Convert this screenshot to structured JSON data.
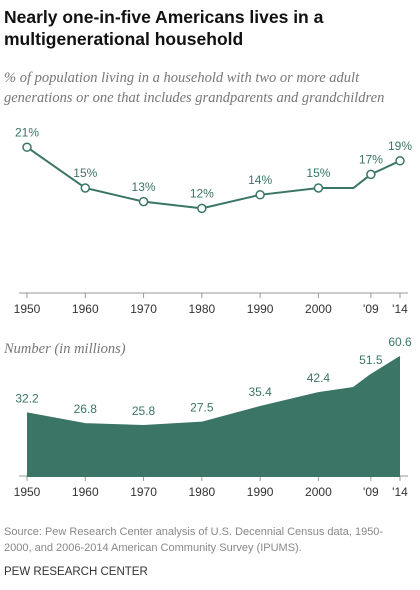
{
  "chart_data": [
    {
      "type": "line",
      "title": "Nearly one-in-five Americans lives in a multigenerational household",
      "subtitle": "% of population living in a household with two or more adult generations or one that includes grandparents and grandchildren",
      "x": [
        1950,
        1960,
        1970,
        1980,
        1990,
        2000,
        2006,
        2009,
        2014
      ],
      "values": [
        21,
        15,
        13,
        12,
        14,
        15,
        15,
        17,
        19
      ],
      "value_labels": [
        "21%",
        "15%",
        "13%",
        "12%",
        "14%",
        "15%",
        null,
        "17%",
        "19%"
      ],
      "color": "#3a7565",
      "xlim": [
        1950,
        2014
      ],
      "xticks": [
        1950,
        1960,
        1970,
        1980,
        1990,
        2000,
        {
          "value": 2009,
          "label": "'09"
        },
        {
          "value": 2014,
          "label": "'14"
        }
      ],
      "ylim": [
        0,
        25
      ]
    },
    {
      "type": "area",
      "subtitle": "Number (in millions)",
      "x": [
        1950,
        1960,
        1970,
        1980,
        1990,
        2000,
        2006,
        2009,
        2014
      ],
      "values": [
        32.2,
        26.8,
        25.8,
        27.5,
        35.4,
        42.4,
        45,
        51.5,
        60.6
      ],
      "value_labels": [
        "32.2",
        "26.8",
        "25.8",
        "27.5",
        "35.4",
        "42.4",
        null,
        "51.5",
        "60.6"
      ],
      "color": "#3a7565",
      "xlim": [
        1950,
        2014
      ],
      "xticks": [
        1950,
        1960,
        1970,
        1980,
        1990,
        2000,
        {
          "value": 2009,
          "label": "'09"
        },
        {
          "value": 2014,
          "label": "'14"
        }
      ],
      "ylim": [
        0,
        65
      ]
    }
  ],
  "source": "Source: Pew Research Center analysis of U.S. Decennial Census data, 1950-2000, and 2006-2014 American Community Survey (IPUMS).",
  "credit": "PEW RESEARCH CENTER"
}
